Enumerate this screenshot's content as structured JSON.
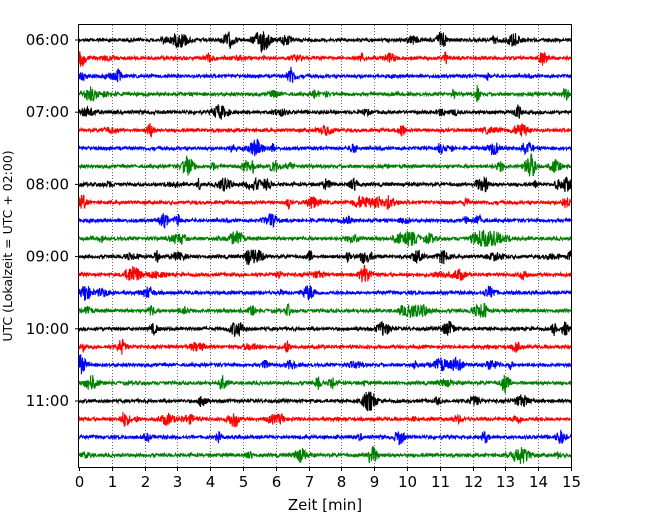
{
  "chart_data": {
    "type": "line",
    "title": "",
    "xlabel": "Zeit  [min]",
    "ylabel": "UTC (Lokalzeit = UTC + 02:00)",
    "xlim": [
      0,
      15
    ],
    "x_ticks": [
      "0",
      "1",
      "2",
      "3",
      "4",
      "5",
      "6",
      "7",
      "8",
      "9",
      "10",
      "11",
      "12",
      "13",
      "14",
      "15"
    ],
    "y_tick_labels": [
      "06:00",
      "07:00",
      "08:00",
      "09:00",
      "10:00",
      "11:00"
    ],
    "grid": "vertical dotted lines at each minute",
    "trace_interval_min": 15,
    "trace_count": 24,
    "trace_start_utc": "06:00",
    "series_colors": [
      "#000000",
      "#ff0000",
      "#0000ff",
      "#008000"
    ]
  }
}
